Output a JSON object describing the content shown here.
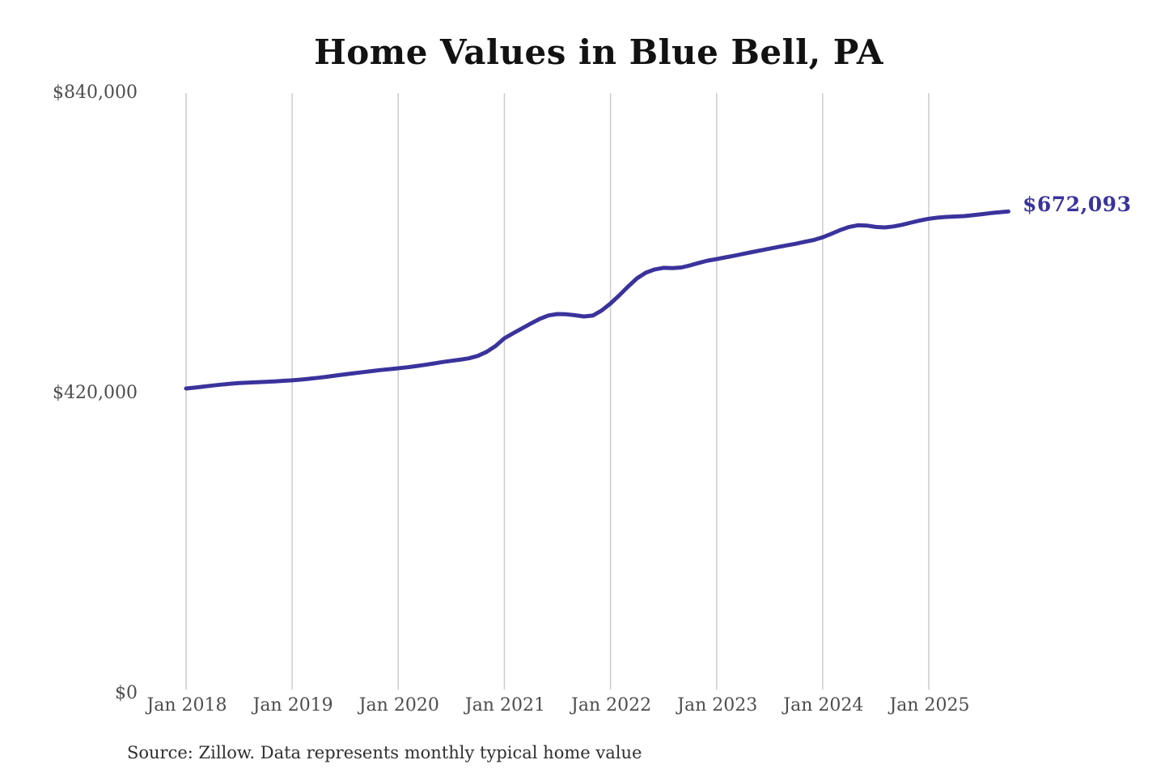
{
  "chart_data": {
    "type": "line",
    "title": "Home Values in Blue Bell, PA",
    "source_note": "Source: Zillow. Data represents monthly typical home value",
    "end_label": "$672,093",
    "final_value": 672093,
    "ylim": [
      0,
      840000
    ],
    "grid": "vertical-only",
    "legend": "none",
    "line_color": "#3a339c",
    "grid_color": "#cccccc",
    "axis_label_color": "#4d4d4d",
    "y_ticks": [
      {
        "value": 0,
        "label": "$0"
      },
      {
        "value": 420000,
        "label": "$420,000"
      },
      {
        "value": 840000,
        "label": "$840,000"
      }
    ],
    "x_tick_labels": [
      "Jan 2018",
      "Jan 2019",
      "Jan 2020",
      "Jan 2021",
      "Jan 2022",
      "Jan 2023",
      "Jan 2024",
      "Jan 2025"
    ],
    "series": [
      {
        "name": "Typical home value",
        "frequency": "monthly",
        "start_month": "2018-01",
        "end_month": "2025-10",
        "values": [
          424500,
          425800,
          427200,
          428700,
          430000,
          431200,
          432100,
          432700,
          433200,
          433800,
          434500,
          435300,
          436000,
          437000,
          438200,
          439600,
          441100,
          442700,
          444300,
          445900,
          447400,
          448900,
          450300,
          451600,
          452800,
          454200,
          455800,
          457600,
          459500,
          461500,
          463200,
          464800,
          466800,
          470200,
          475800,
          484000,
          494700,
          501800,
          508600,
          515400,
          521900,
          526800,
          528700,
          528300,
          527000,
          525300,
          526500,
          533500,
          543400,
          554800,
          567200,
          578600,
          586500,
          591000,
          593300,
          592900,
          593800,
          596700,
          600200,
          603400,
          605600,
          607900,
          610300,
          612800,
          615300,
          617800,
          620200,
          622500,
          624800,
          627000,
          629800,
          632300,
          636000,
          641000,
          646200,
          650500,
          652900,
          652400,
          650500,
          649800,
          651200,
          653600,
          656600,
          659600,
          661900,
          663500,
          664500,
          665100,
          665700,
          666900,
          668400,
          669800,
          671000,
          672093
        ]
      }
    ]
  }
}
